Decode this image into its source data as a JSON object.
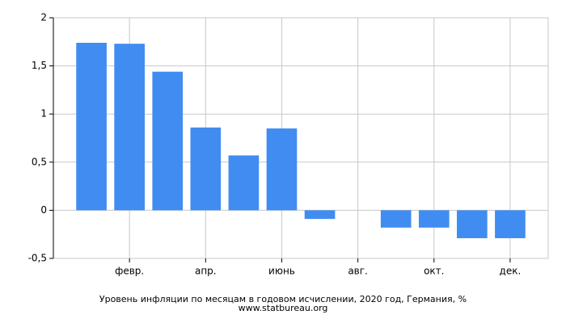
{
  "chart_data": {
    "type": "bar",
    "title": "Уровень инфляции по месяцам в годовом исчислении, 2020 год, Германия, %",
    "subtitle": "www.statbureau.org",
    "categories": [
      null,
      "февр.",
      null,
      "апр.",
      null,
      "июнь",
      null,
      "авг.",
      null,
      "окт.",
      null,
      "дек."
    ],
    "values": [
      1.74,
      1.73,
      1.44,
      0.86,
      0.57,
      0.85,
      -0.09,
      0,
      -0.18,
      -0.18,
      -0.29,
      -0.29
    ],
    "color": "#418cf0",
    "ylim": [
      -0.5,
      2
    ],
    "yticks": [
      {
        "value": -0.5,
        "label": "-0,5"
      },
      0,
      {
        "value": 0.5,
        "label": "0,5"
      },
      1,
      {
        "value": 1.5,
        "label": "1,5"
      },
      2
    ],
    "grid": true
  }
}
